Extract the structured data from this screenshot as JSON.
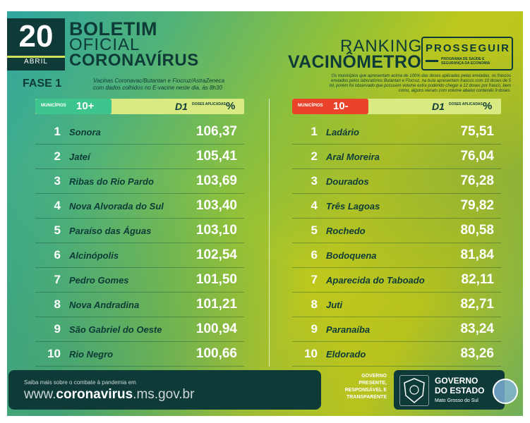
{
  "header": {
    "day": "20",
    "month": "ABRIL",
    "title_line1": "BOLETIM",
    "title_line2": "OFICIAL",
    "title_line3": "CORONAVÍRUS",
    "ranking_line1": "RANKING",
    "ranking_line2": "VACINÔMETRO",
    "logo_text": "PROSSEGUIR",
    "logo_sub": "PROGRAMA DE SAÚDE E SEGURANÇA DA ECONOMIA"
  },
  "phase": {
    "label": "FASE 1",
    "note": "Vacinas Coronavac/Butantan e Fiocruz/AstraZeneca com dados colhidos no E-vacine neste dia, às 8h30"
  },
  "right_note": "Os municípios que apresentam acima de 100% das doses aplicadas pelas enviadas, os frascos enviados pelos laboratórios Butantan e Fiocruz, na bula apresentam frascos com 10 doses de 5 ml, porém foi observado que possuem volume extra podendo chegar a 12 doses por frasco, bem como, alguns vieram com volume abaixo contendo 9 doses.",
  "column_header": {
    "d1": "D1",
    "doses_label": "DOSES APLICADAS",
    "pct": "%"
  },
  "top": {
    "tag_small": "MUNICÍPIOS",
    "tag_big": "10+",
    "tag_color": "#3ec58e",
    "rows": [
      {
        "rank": "1",
        "name": "Sonora",
        "value": "106,37"
      },
      {
        "rank": "2",
        "name": "Jateí",
        "value": "105,41"
      },
      {
        "rank": "3",
        "name": "Ribas do Rio Pardo",
        "value": "103,69"
      },
      {
        "rank": "4",
        "name": "Nova Alvorada do Sul",
        "value": "103,40"
      },
      {
        "rank": "5",
        "name": "Paraíso das Águas",
        "value": "103,10"
      },
      {
        "rank": "6",
        "name": "Alcinópolis",
        "value": "102,54"
      },
      {
        "rank": "7",
        "name": "Pedro Gomes",
        "value": "101,50"
      },
      {
        "rank": "8",
        "name": "Nova Andradina",
        "value": "101,21"
      },
      {
        "rank": "9",
        "name": "São Gabriel do Oeste",
        "value": "100,94"
      },
      {
        "rank": "10",
        "name": "Rio Negro",
        "value": "100,66"
      }
    ]
  },
  "bottom": {
    "tag_small": "MUNICÍPIOS",
    "tag_big": "10-",
    "tag_color": "#e9442a",
    "rows": [
      {
        "rank": "1",
        "name": "Ladário",
        "value": "75,51"
      },
      {
        "rank": "2",
        "name": "Aral Moreira",
        "value": "76,04"
      },
      {
        "rank": "3",
        "name": "Dourados",
        "value": "76,28"
      },
      {
        "rank": "4",
        "name": "Três Lagoas",
        "value": "79,82"
      },
      {
        "rank": "5",
        "name": "Rochedo",
        "value": "80,58"
      },
      {
        "rank": "6",
        "name": "Bodoquena",
        "value": "81,84"
      },
      {
        "rank": "7",
        "name": "Aparecida do Taboado",
        "value": "82,11"
      },
      {
        "rank": "8",
        "name": "Juti",
        "value": "82,71"
      },
      {
        "rank": "9",
        "name": "Paranaíba",
        "value": "83,24"
      },
      {
        "rank": "10",
        "name": "Eldorado",
        "value": "83,26"
      }
    ]
  },
  "footer": {
    "small": "Saiba mais sobre o combate à pandemia em",
    "url_pre": "www.",
    "url_bold": "coronavirus",
    "url_post": ".ms.gov.br",
    "gov_slogan_1": "GOVERNO",
    "gov_slogan_2": "PRESENTE,",
    "gov_slogan_3": "RESPONSÁVEL E",
    "gov_slogan_4": "TRANSPARENTE",
    "gov_title_1": "GOVERNO",
    "gov_title_2": "DO ESTADO",
    "gov_state": "Mato Grosso do Sul"
  }
}
